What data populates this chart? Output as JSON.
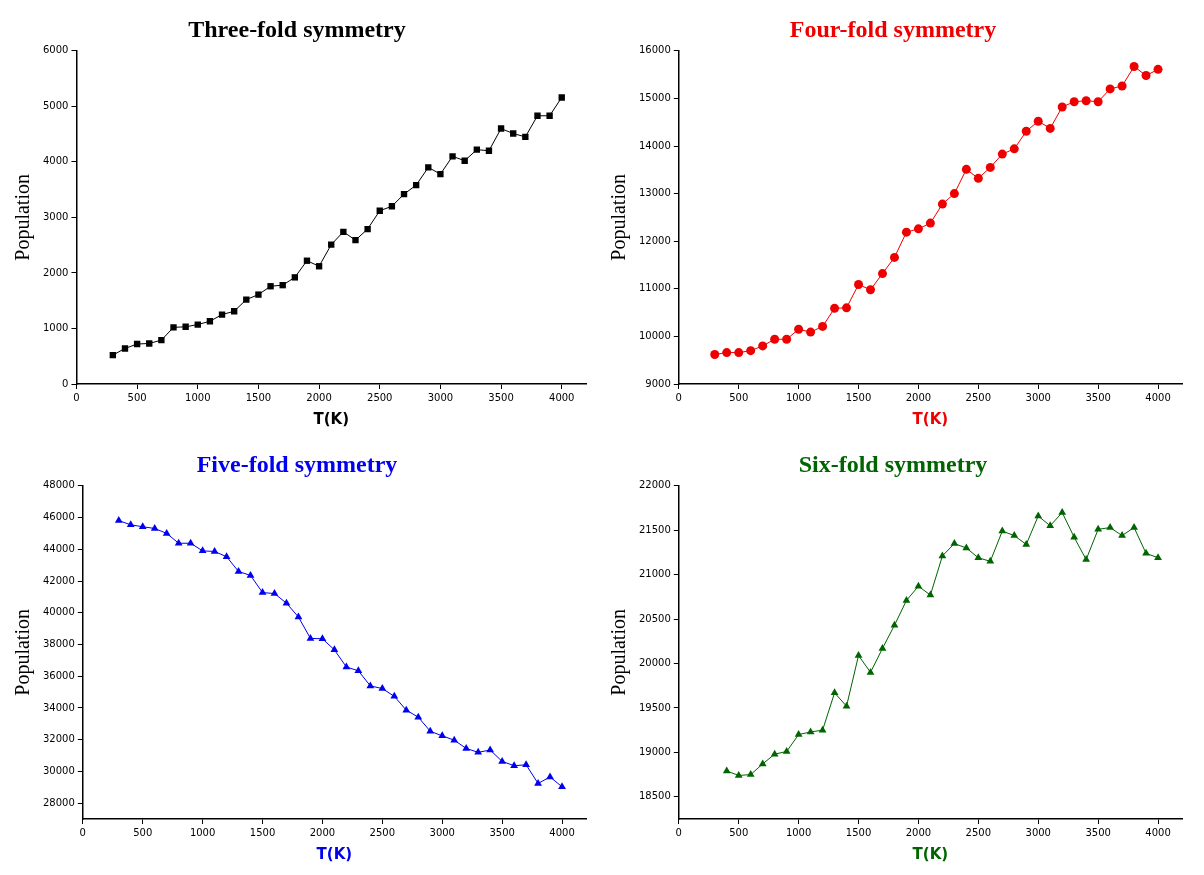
{
  "chart_data": [
    {
      "type": "line",
      "title": "Three-fold symmetry",
      "xlabel": "T(K)",
      "ylabel": "Population",
      "marker": "square",
      "grid": false,
      "x": [
        300,
        400,
        500,
        600,
        700,
        800,
        900,
        1000,
        1100,
        1200,
        1300,
        1400,
        1500,
        1600,
        1700,
        1800,
        1900,
        2000,
        2100,
        2200,
        2300,
        2400,
        2500,
        2600,
        2700,
        2800,
        2900,
        3000,
        3100,
        3200,
        3300,
        3400,
        3500,
        3600,
        3700,
        3800,
        3900,
        4000
      ],
      "series": [
        {
          "color": "#000000",
          "values": [
            520,
            640,
            720,
            730,
            790,
            1020,
            1030,
            1070,
            1130,
            1250,
            1310,
            1520,
            1610,
            1760,
            1780,
            1920,
            2220,
            2120,
            2510,
            2740,
            2590,
            2790,
            3120,
            3200,
            3420,
            3580,
            3900,
            3780,
            4100,
            4020,
            4220,
            4200,
            4600,
            4510,
            4450,
            4830,
            4830,
            5160
          ]
        }
      ],
      "xlim": [
        0,
        4200
      ],
      "xticks": [
        0,
        500,
        1000,
        1500,
        2000,
        2500,
        3000,
        3500,
        4000
      ],
      "ylim": [
        0,
        6000
      ],
      "yticks": [
        0,
        1000,
        2000,
        3000,
        4000,
        5000,
        6000
      ]
    },
    {
      "type": "line",
      "title": "Four-fold symmetry",
      "xlabel": "T(K)",
      "ylabel": "Population",
      "marker": "circle",
      "grid": false,
      "x": [
        300,
        400,
        500,
        600,
        700,
        800,
        900,
        1000,
        1100,
        1200,
        1300,
        1400,
        1500,
        1600,
        1700,
        1800,
        1900,
        2000,
        2100,
        2200,
        2300,
        2400,
        2500,
        2600,
        2700,
        2800,
        2900,
        3000,
        3100,
        3200,
        3300,
        3400,
        3500,
        3600,
        3700,
        3800,
        3900,
        4000
      ],
      "series": [
        {
          "color": "#ee0000",
          "values": [
            9620,
            9660,
            9660,
            9700,
            9800,
            9940,
            9940,
            10150,
            10090,
            10210,
            10590,
            10600,
            11090,
            10980,
            11320,
            11660,
            12190,
            12260,
            12380,
            12780,
            13000,
            13510,
            13320,
            13550,
            13830,
            13940,
            14310,
            14520,
            14370,
            14820,
            14930,
            14950,
            14930,
            15200,
            15260,
            15670,
            15480,
            15610
          ]
        }
      ],
      "xlim": [
        0,
        4200
      ],
      "xticks": [
        0,
        500,
        1000,
        1500,
        2000,
        2500,
        3000,
        3500,
        4000
      ],
      "ylim": [
        9000,
        16000
      ],
      "yticks": [
        9000,
        10000,
        11000,
        12000,
        13000,
        14000,
        15000,
        16000
      ]
    },
    {
      "type": "line",
      "title": "Five-fold symmetry",
      "xlabel": "T(K)",
      "ylabel": "Population",
      "marker": "triangle",
      "grid": false,
      "x": [
        300,
        400,
        500,
        600,
        700,
        800,
        900,
        1000,
        1100,
        1200,
        1300,
        1400,
        1500,
        1600,
        1700,
        1800,
        1900,
        2000,
        2100,
        2200,
        2300,
        2400,
        2500,
        2600,
        2700,
        2800,
        2900,
        3000,
        3100,
        3200,
        3300,
        3400,
        3500,
        3600,
        3700,
        3800,
        3900,
        4000
      ],
      "series": [
        {
          "color": "#0000ee",
          "values": [
            45810,
            45540,
            45420,
            45310,
            45000,
            44380,
            44380,
            43900,
            43860,
            43530,
            42600,
            42350,
            41270,
            41210,
            40600,
            39730,
            38380,
            38360,
            37660,
            36580,
            36340,
            35390,
            35220,
            34730,
            33860,
            33420,
            32530,
            32240,
            31970,
            31450,
            31200,
            31350,
            30630,
            30360,
            30420,
            29240,
            29650,
            29030
          ]
        }
      ],
      "xlim": [
        0,
        4200
      ],
      "xticks": [
        0,
        500,
        1000,
        1500,
        2000,
        2500,
        3000,
        3500,
        4000
      ],
      "ylim": [
        27000,
        48000
      ],
      "yticks": [
        28000,
        30000,
        32000,
        34000,
        36000,
        38000,
        40000,
        42000,
        44000,
        46000,
        48000
      ]
    },
    {
      "type": "line",
      "title": "Six-fold symmetry",
      "xlabel": "T(K)",
      "ylabel": "Population",
      "marker": "triangle",
      "grid": false,
      "x": [
        400,
        500,
        600,
        700,
        800,
        900,
        1000,
        1100,
        1200,
        1300,
        1400,
        1500,
        1600,
        1700,
        1800,
        1900,
        2000,
        2100,
        2200,
        2300,
        2400,
        2500,
        2600,
        2700,
        2800,
        2900,
        3000,
        3100,
        3200,
        3300,
        3400,
        3500,
        3600,
        3700,
        3800,
        3900,
        4000
      ],
      "series": [
        {
          "color": "#006400",
          "values": [
            18790,
            18740,
            18750,
            18870,
            18980,
            19010,
            19200,
            19230,
            19250,
            19670,
            19520,
            20090,
            19900,
            20170,
            20430,
            20710,
            20870,
            20770,
            21210,
            21350,
            21300,
            21190,
            21150,
            21490,
            21440,
            21340,
            21660,
            21550,
            21700,
            21420,
            21170,
            21510,
            21530,
            21440,
            21530,
            21240,
            21190
          ]
        }
      ],
      "xlim": [
        0,
        4200
      ],
      "xticks": [
        0,
        500,
        1000,
        1500,
        2000,
        2500,
        3000,
        3500,
        4000
      ],
      "ylim": [
        18250,
        22000
      ],
      "yticks": [
        18500,
        19000,
        19500,
        20000,
        20500,
        21000,
        21500,
        22000
      ]
    }
  ]
}
